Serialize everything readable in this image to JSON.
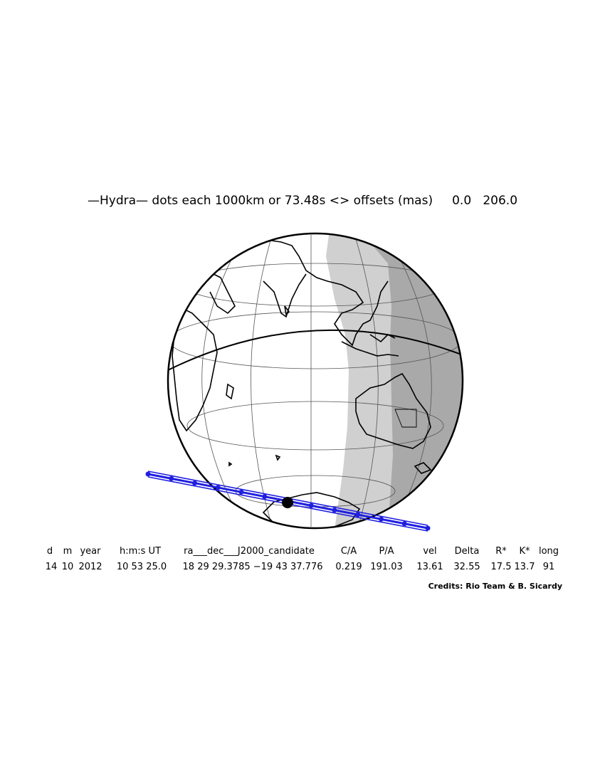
{
  "title": "—Hydra— dots each 1000km or 73.48s <> offsets (mas)     0.0   206.0",
  "table": {
    "headers": [
      "d",
      "m",
      "year",
      "h:m:s UT",
      "ra___dec___J2000_candidate",
      "C/A",
      "P/A",
      "vel",
      "Delta",
      "R*",
      "K*",
      "long"
    ],
    "values": [
      "14",
      "10",
      "2012",
      "10 53 25.0",
      "18 29 29.3785 −19 43 37.776",
      "0.219",
      "191.03",
      "13.61",
      "32.55",
      "17.5",
      "13.7",
      "91"
    ]
  },
  "credits": "Credits: Rio Team & B. Sicardy",
  "colors": {
    "track": "#1f1fe0",
    "night": "#a9a9a9",
    "twilight": "#d0d0d0",
    "land": "#000000"
  },
  "icons": [
    "globe-map",
    "occultation-track",
    "shadow-center-dot"
  ]
}
